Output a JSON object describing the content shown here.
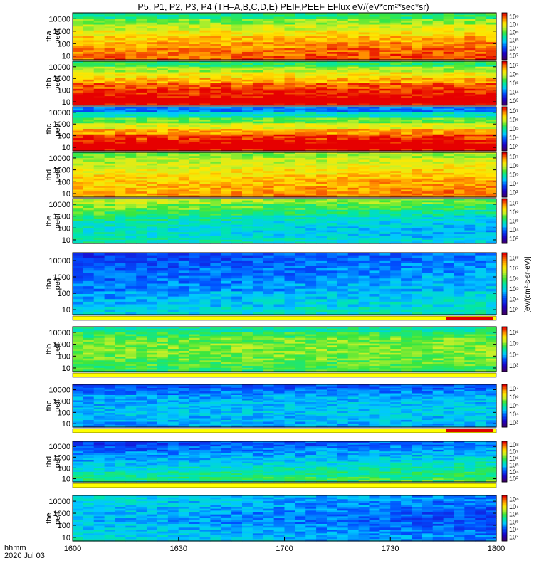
{
  "title": "P5, P1, P2, P3, P4 (TH–A,B,C,D,E) PEIF,PEEF EFlux eV/(eV*cm²*sec*sr)",
  "chart_data": {
    "type": "heatmap",
    "title": "P5, P1, P2, P3, P4 (TH–A,B,C,D,E) PEIF,PEEF EFlux eV/(eV*cm²*sec*sr)",
    "x_axis": {
      "label_line1": "hhmm",
      "label_line2": "2020 Jul 03",
      "ticks": [
        "1600",
        "1630",
        "1700",
        "1730",
        "1800"
      ]
    },
    "y_axis": {
      "scale": "log",
      "ticks": [
        "10",
        "100",
        "1000",
        "10000"
      ],
      "range": [
        5,
        30000
      ]
    },
    "colorbar_label": "[eV/(cm²-s-sr-eV)]",
    "panels": [
      {
        "label1": "tha",
        "label2": "peef",
        "cbar": [
          "10³",
          "10⁴",
          "10⁵",
          "10⁶",
          "10⁷",
          "10⁸"
        ],
        "bands": [
          0.5,
          0.6,
          0.68,
          0.74,
          0.8,
          0.84,
          0.88,
          0.9
        ],
        "trend": 0.05,
        "red_band": false,
        "bottom_bar": false
      },
      {
        "label1": "thb",
        "label2": "peef",
        "cbar": [
          "10³",
          "10⁴",
          "10⁵",
          "10⁶",
          "10⁷"
        ],
        "bands": [
          0.55,
          0.66,
          0.76,
          0.84,
          0.92,
          0.97,
          1.0,
          1.0
        ],
        "trend": 0.0,
        "red_band": true,
        "bottom_bar": false
      },
      {
        "label1": "thc",
        "label2": "peef",
        "cbar": [
          "10³",
          "10⁴",
          "10⁵",
          "10⁶",
          "10⁷"
        ],
        "bands": [
          0.3,
          0.45,
          0.6,
          0.72,
          0.85,
          0.95,
          1.0,
          1.0
        ],
        "trend": 0.0,
        "red_band": true,
        "bottom_bar": false
      },
      {
        "label1": "thd",
        "label2": "peef",
        "cbar": [
          "10³",
          "10⁴",
          "10⁵",
          "10⁶",
          "10⁷"
        ],
        "bands": [
          0.6,
          0.66,
          0.7,
          0.74,
          0.78,
          0.8,
          0.82,
          0.84
        ],
        "trend": 0.06,
        "red_band": false,
        "bottom_bar": false
      },
      {
        "label1": "the",
        "label2": "peef",
        "cbar": [
          "10³",
          "10⁴",
          "10⁵",
          "10⁶",
          "10⁷"
        ],
        "bands": [
          0.7,
          0.64,
          0.58,
          0.52,
          0.48,
          0.46,
          0.46,
          0.5
        ],
        "trend": -0.1,
        "red_band": false,
        "bottom_bar": false
      },
      {
        "label1": "tha",
        "label2": "peif",
        "cbar": [
          "10³",
          "10⁴",
          "10⁵",
          "10⁶",
          "10⁷",
          "10⁸"
        ],
        "bands": [
          0.22,
          0.24,
          0.26,
          0.28,
          0.3,
          0.33,
          0.36,
          0.4
        ],
        "trend": 0.08,
        "red_band": false,
        "bottom_bar": true
      },
      {
        "label1": "thb",
        "label2": "peif",
        "cbar": [
          "10³",
          "10⁴",
          "10⁵",
          "10⁶"
        ],
        "bands": [
          0.48,
          0.55,
          0.6,
          0.62,
          0.62,
          0.6,
          0.58,
          0.55
        ],
        "trend": 0.02,
        "red_band": false,
        "bottom_bar": true
      },
      {
        "label1": "thc",
        "label2": "peif",
        "cbar": [
          "10³",
          "10⁴",
          "10⁵",
          "10⁶",
          "10⁷"
        ],
        "bands": [
          0.25,
          0.3,
          0.34,
          0.36,
          0.38,
          0.38,
          0.36,
          0.34
        ],
        "trend": 0.02,
        "red_band": false,
        "bottom_bar": true
      },
      {
        "label1": "thd",
        "label2": "peif",
        "cbar": [
          "10³",
          "10⁴",
          "10⁵",
          "10⁶",
          "10⁷",
          "10⁸"
        ],
        "bands": [
          0.22,
          0.26,
          0.3,
          0.34,
          0.38,
          0.42,
          0.46,
          0.5
        ],
        "trend": 0.08,
        "red_band": false,
        "bottom_bar": true
      },
      {
        "label1": "the",
        "label2": "peif",
        "cbar": [
          "10³",
          "10⁴",
          "10⁵",
          "10⁶",
          "10⁷",
          "10⁸"
        ],
        "bands": [
          0.44,
          0.42,
          0.4,
          0.38,
          0.38,
          0.4,
          0.42,
          0.44
        ],
        "trend": -0.14,
        "red_band": false,
        "bottom_bar": false
      }
    ]
  }
}
